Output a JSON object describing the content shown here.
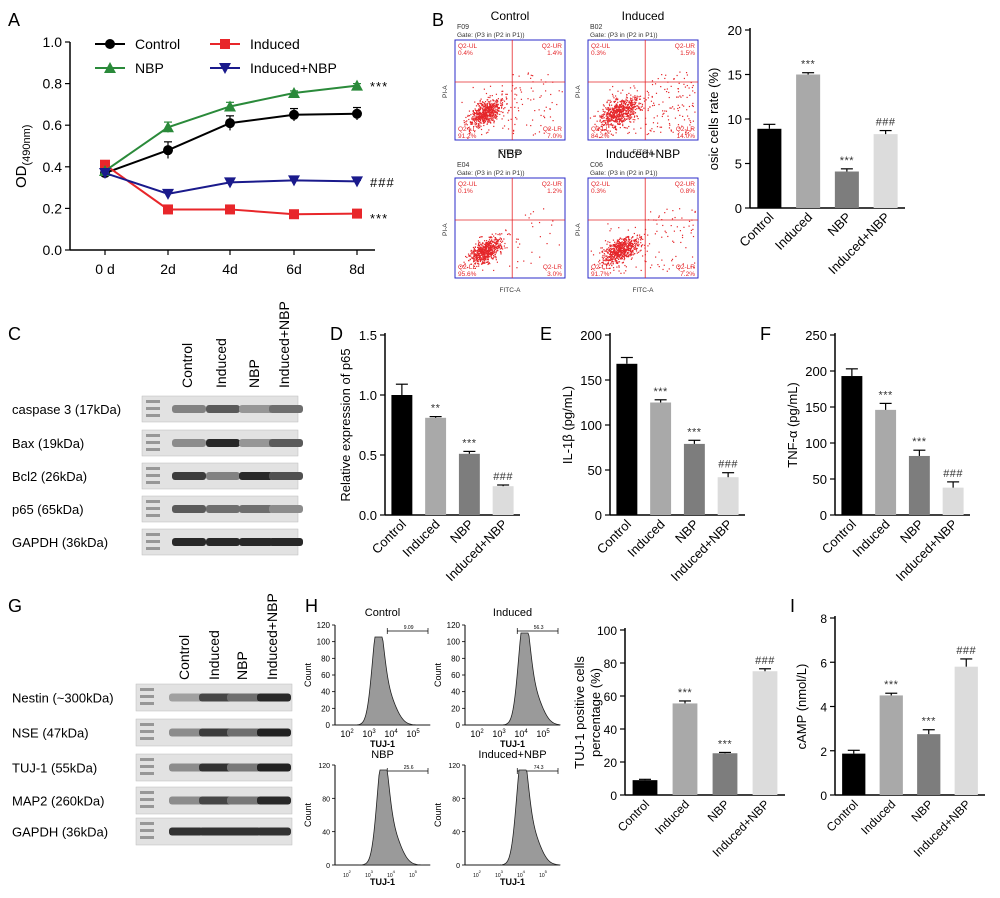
{
  "panel_letters": {
    "A": "A",
    "B": "B",
    "C": "C",
    "D": "D",
    "E": "E",
    "F": "F",
    "G": "G",
    "H": "H",
    "I": "I"
  },
  "colors": {
    "control": "#000000",
    "induced": "#e8262a",
    "nbp": "#2a8a3a",
    "induced_nbp": "#1a1a8c",
    "bar_control": "#000000",
    "bar_induced": "#a9a9a9",
    "bar_nbp": "#7d7d7d",
    "bar_induced_nbp": "#dcdcdc",
    "flow_dots": "#e5262a",
    "gate_line": "#e5262a",
    "flow_frame": "#2b2bc8"
  },
  "figure_A": {
    "ylabel": "OD",
    "ylabel_sub": "(490nm)",
    "xticks": [
      "0 d",
      "2d",
      "4d",
      "6d",
      "8d"
    ],
    "yticks": [
      "0.0",
      "0.2",
      "0.4",
      "0.6",
      "0.8",
      "1.0"
    ],
    "legend": [
      "Control",
      "Induced",
      "NBP",
      "Induced+NBP"
    ],
    "sig": {
      "nbp": "***",
      "induced_nbp": "###",
      "induced": "***"
    }
  },
  "figure_B": {
    "plots": [
      {
        "title": "Control",
        "id": "F09",
        "gate": "Gate: (P3 in (P2 in P1))",
        "ul_label": "Q2-UL",
        "ul": "0.4%",
        "ur_label": "Q2-UR",
        "ur": "1.4%",
        "ll_label": "Q2-LL",
        "ll": "91.2%",
        "lr_label": "Q2-LR",
        "lr": "7.0%"
      },
      {
        "title": "Induced",
        "id": "B02",
        "gate": "Gate: (P3 in (P2 in P1))",
        "ul_label": "Q2-UL",
        "ul": "0.3%",
        "ur_label": "Q2-UR",
        "ur": "1.5%",
        "ll_label": "Q2-LL",
        "ll": "84.2%",
        "lr_label": "Q2-LR",
        "lr": "14.0%"
      },
      {
        "title": "NBP",
        "id": "E04",
        "gate": "Gate: (P3 in (P2 in P1))",
        "ul_label": "Q2-UL",
        "ul": "0.1%",
        "ur_label": "Q2-UR",
        "ur": "1.2%",
        "ll_label": "Q2-LL",
        "ll": "95.6%",
        "lr_label": "Q2-LR",
        "lr": "3.0%"
      },
      {
        "title": "Induced+NBP",
        "id": "C06",
        "gate": "Gate: (P3 in (P2 in P1))",
        "ul_label": "Q2-UL",
        "ul": "0.3%",
        "ur_label": "Q2-UR",
        "ur": "0.8%",
        "ll_label": "Q2-LL",
        "ll": "91.7%",
        "lr_label": "Q2-LR",
        "lr": "7.2%"
      }
    ],
    "xaxis": "FITC-A",
    "yaxis": "PI-A",
    "tick": "10"
  },
  "figure_C": {
    "lanes": [
      "Control",
      "Induced",
      "NBP",
      "Induced+NBP"
    ],
    "rows": [
      "caspase 3  (17kDa)",
      "Bax  (19kDa)",
      "Bcl2 (26kDa)",
      "p65 (65kDa)",
      "GAPDH (36kDa)"
    ],
    "band_intensity": [
      [
        0.5,
        0.7,
        0.4,
        0.6
      ],
      [
        0.45,
        0.95,
        0.4,
        0.7
      ],
      [
        0.85,
        0.5,
        0.95,
        0.75
      ],
      [
        0.7,
        0.6,
        0.6,
        0.45
      ],
      [
        0.95,
        0.95,
        0.95,
        0.95
      ]
    ]
  },
  "figure_G": {
    "lanes": [
      "Control",
      "Induced",
      "NBP",
      "Induced+NBP"
    ],
    "rows": [
      "Nestin (~300kDa)",
      "NSE (47kDa)",
      "TUJ-1 (55kDa)",
      "MAP2 (260kDa)",
      "GAPDH (36kDa)"
    ],
    "band_intensity": [
      [
        0.35,
        0.8,
        0.6,
        0.95
      ],
      [
        0.45,
        0.85,
        0.6,
        0.98
      ],
      [
        0.45,
        0.9,
        0.55,
        0.98
      ],
      [
        0.45,
        0.8,
        0.55,
        0.95
      ],
      [
        0.9,
        0.9,
        0.9,
        0.9
      ]
    ]
  },
  "figure_H": {
    "plots": [
      {
        "title": "Control",
        "gate": "9.09"
      },
      {
        "title": "Induced",
        "gate": "56.3"
      },
      {
        "title": "NBP",
        "gate": "25.6"
      },
      {
        "title": "Induced+NBP",
        "gate": "74.3"
      }
    ],
    "xaxis": "TUJ-1",
    "yaxis": "Count",
    "yticks": [
      "0",
      "20",
      "40",
      "60",
      "80",
      "100",
      "120"
    ],
    "yticks_bottom": [
      "0",
      "40",
      "80",
      "120"
    ],
    "xticks": [
      "10",
      "10",
      "10",
      "10",
      "10"
    ],
    "xtick_exps": [
      "2",
      "3",
      "4",
      "5"
    ]
  },
  "chart_data": [
    {
      "type": "line",
      "panel": "A",
      "ylabel": "OD(490nm)",
      "ylim": [
        0,
        1.0
      ],
      "x": [
        "0 d",
        "2d",
        "4d",
        "6d",
        "8d"
      ],
      "series": [
        {
          "name": "Control",
          "values": [
            0.37,
            0.48,
            0.61,
            0.65,
            0.655
          ],
          "err": [
            0.01,
            0.04,
            0.035,
            0.03,
            0.03
          ]
        },
        {
          "name": "Induced",
          "values": [
            0.41,
            0.195,
            0.195,
            0.172,
            0.175
          ],
          "err": [
            0.01,
            0.01,
            0.01,
            0.01,
            0.01
          ]
        },
        {
          "name": "NBP",
          "values": [
            0.38,
            0.59,
            0.69,
            0.755,
            0.79
          ],
          "err": [
            0.01,
            0.025,
            0.02,
            0.01,
            0.01
          ]
        },
        {
          "name": "Induced+NBP",
          "values": [
            0.37,
            0.27,
            0.325,
            0.335,
            0.33
          ],
          "err": [
            0.005,
            0.01,
            0.008,
            0.008,
            0.005
          ]
        }
      ]
    },
    {
      "type": "bar",
      "panel": "B",
      "ylabel": "osic cells rate (%)",
      "ylim": [
        0,
        20
      ],
      "yticks": [
        "0",
        "5",
        "10",
        "15",
        "20"
      ],
      "categories": [
        "Control",
        "Induced",
        "NBP",
        "Induced+NBP"
      ],
      "values": [
        8.9,
        15.0,
        4.1,
        8.3
      ],
      "err": [
        0.5,
        0.2,
        0.3,
        0.4
      ],
      "annotations": [
        "",
        "***",
        "***",
        "###"
      ]
    },
    {
      "type": "bar",
      "panel": "D",
      "ylabel": "Relative expression of p65",
      "ylim": [
        0,
        1.5
      ],
      "yticks": [
        "0.0",
        "0.5",
        "1.0",
        "1.5"
      ],
      "categories": [
        "Control",
        "Induced",
        "NBP",
        "Induced+NBP"
      ],
      "values": [
        1.0,
        0.81,
        0.51,
        0.24
      ],
      "err": [
        0.09,
        0.01,
        0.02,
        0.01
      ],
      "annotations": [
        "",
        "**",
        "***",
        "###"
      ]
    },
    {
      "type": "bar",
      "panel": "E",
      "ylabel": "IL-1β (pg/mL)",
      "ylim": [
        0,
        200
      ],
      "yticks": [
        "0",
        "50",
        "100",
        "150",
        "200"
      ],
      "categories": [
        "Control",
        "Induced",
        "NBP",
        "Induced+NBP"
      ],
      "values": [
        168,
        125,
        79,
        42
      ],
      "err": [
        7,
        3,
        4,
        5
      ],
      "annotations": [
        "",
        "***",
        "***",
        "###"
      ]
    },
    {
      "type": "bar",
      "panel": "F",
      "ylabel": "TNF-α (pg/mL)",
      "ylim": [
        0,
        250
      ],
      "yticks": [
        "0",
        "50",
        "100",
        "150",
        "200",
        "250"
      ],
      "categories": [
        "Control",
        "Induced",
        "NBP",
        "Induced+NBP"
      ],
      "values": [
        193,
        146,
        82,
        38
      ],
      "err": [
        10,
        9,
        8,
        8
      ],
      "annotations": [
        "",
        "***",
        "***",
        "###"
      ]
    },
    {
      "type": "bar",
      "panel": "H",
      "ylabel": "TUJ-1 positive cells percentage (%)",
      "ylim": [
        0,
        100
      ],
      "yticks": [
        "0",
        "20",
        "40",
        "60",
        "80",
        "100"
      ],
      "categories": [
        "Control",
        "Induced",
        "NBP",
        "Induced+NBP"
      ],
      "values": [
        9,
        55.5,
        25.3,
        75
      ],
      "err": [
        0.5,
        1.5,
        0.5,
        1.5
      ],
      "annotations": [
        "",
        "***",
        "***",
        "###"
      ]
    },
    {
      "type": "bar",
      "panel": "I",
      "ylabel": "cAMP (nmol/L)",
      "ylim": [
        0,
        8
      ],
      "yticks": [
        "0",
        "2",
        "4",
        "6",
        "8"
      ],
      "categories": [
        "Control",
        "Induced",
        "NBP",
        "Induced+NBP"
      ],
      "values": [
        1.87,
        4.5,
        2.75,
        5.8
      ],
      "err": [
        0.15,
        0.1,
        0.2,
        0.35
      ],
      "annotations": [
        "",
        "***",
        "***",
        "###"
      ]
    }
  ]
}
